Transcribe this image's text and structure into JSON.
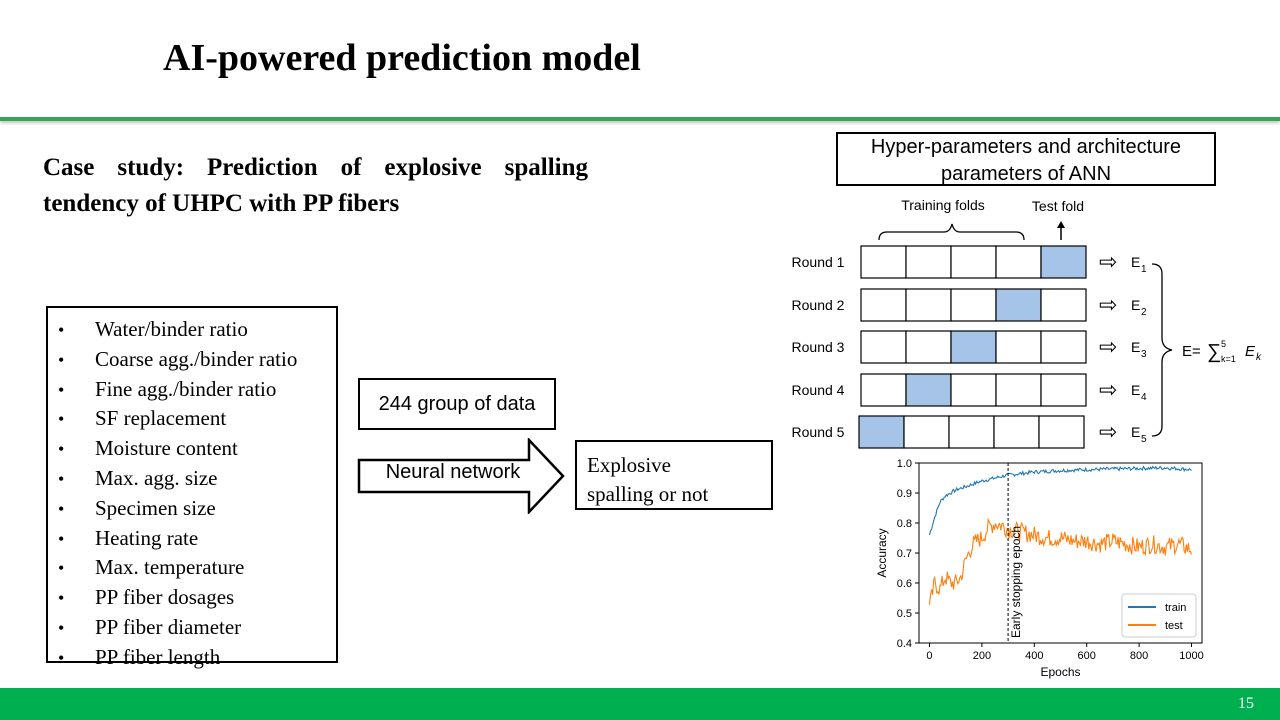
{
  "slide": {
    "title": "AI-powered prediction model",
    "case_study": "Case study: Prediction of explosive spalling tendency of UHPC with PP fibers",
    "features": [
      "Water/binder ratio",
      "Coarse agg./binder ratio",
      "Fine agg./binder ratio",
      "SF replacement",
      "Moisture content",
      "Max. agg. size",
      "Specimen size",
      "Heating rate",
      "Max. temperature",
      "PP fiber dosages",
      "PP fiber diameter",
      "PP fiber length"
    ],
    "bullet": "•",
    "data_box": "244 group of data",
    "arrow_label": "Neural network",
    "output_line1": "Explosive",
    "output_line2": "spalling or not",
    "hyper_line1": "Hyper-parameters and architecture",
    "hyper_line2": "parameters of ANN",
    "page_number": "15",
    "accent_color": "#3aa35a",
    "footer_color": "#00b050"
  },
  "cv_diagram": {
    "training_folds_label": "Training folds",
    "test_fold_label": "Test fold",
    "rounds": [
      {
        "label": "Round 1",
        "test_index": 4,
        "error": "E",
        "sub": "1"
      },
      {
        "label": "Round 2",
        "test_index": 3,
        "error": "E",
        "sub": "2"
      },
      {
        "label": "Round 3",
        "test_index": 2,
        "error": "E",
        "sub": "3"
      },
      {
        "label": "Round 4",
        "test_index": 1,
        "error": "E",
        "sub": "4"
      },
      {
        "label": "Round 5",
        "test_index": 0,
        "error": "E",
        "sub": "5"
      }
    ],
    "arrow_glyph": "⇨",
    "formula_lhs": "E=",
    "formula_sum": "∑",
    "formula_upper": "5",
    "formula_lower": "k=1",
    "formula_term": "E",
    "formula_term_sub": "k",
    "fold_fill": "#a6c4e8"
  },
  "chart_data": {
    "type": "line",
    "title": "",
    "xlabel": "Epochs",
    "ylabel": "Accuracy",
    "xlim": [
      -40,
      1040
    ],
    "ylim": [
      0.4,
      1.0
    ],
    "xticks": [
      "0",
      "200",
      "400",
      "600",
      "800",
      "1000"
    ],
    "yticks": [
      "0.4",
      "0.5",
      "0.6",
      "0.7",
      "0.8",
      "0.9",
      "1.0"
    ],
    "legend_position": "bottom-right",
    "annotation": "Early stopping epoch",
    "annotation_x": 300,
    "series": [
      {
        "name": "train",
        "color": "#1f77b4",
        "x": [
          0,
          20,
          40,
          60,
          80,
          100,
          150,
          200,
          250,
          300,
          350,
          400,
          500,
          600,
          700,
          800,
          900,
          1000
        ],
        "values": [
          0.76,
          0.82,
          0.87,
          0.89,
          0.9,
          0.91,
          0.925,
          0.94,
          0.95,
          0.96,
          0.965,
          0.97,
          0.975,
          0.978,
          0.98,
          0.982,
          0.984,
          0.978
        ]
      },
      {
        "name": "test",
        "color": "#ff7f0e",
        "x": [
          0,
          20,
          40,
          60,
          80,
          100,
          120,
          140,
          160,
          180,
          200,
          220,
          250,
          280,
          300,
          350,
          400,
          450,
          500,
          550,
          600,
          650,
          700,
          750,
          800,
          850,
          900,
          950,
          1000
        ],
        "values": [
          0.52,
          0.6,
          0.58,
          0.62,
          0.6,
          0.6,
          0.62,
          0.68,
          0.72,
          0.74,
          0.75,
          0.78,
          0.8,
          0.79,
          0.78,
          0.77,
          0.76,
          0.75,
          0.75,
          0.74,
          0.74,
          0.73,
          0.74,
          0.73,
          0.72,
          0.73,
          0.72,
          0.73,
          0.71
        ]
      }
    ]
  }
}
